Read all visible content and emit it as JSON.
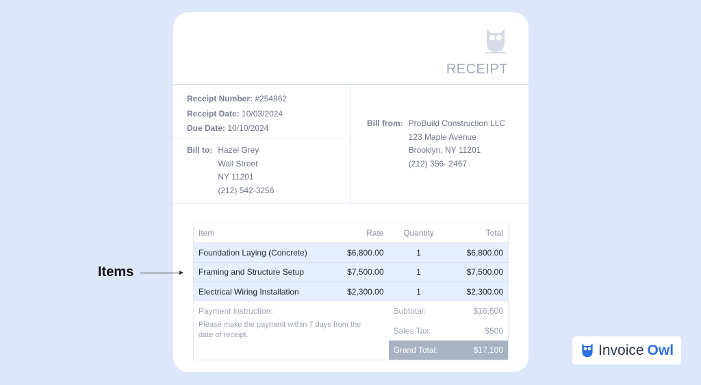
{
  "receipt": {
    "title": "RECEIPT",
    "receipt_number_label": "Receipt Number:",
    "receipt_number": "#254862",
    "receipt_date_label": "Receipt Date:",
    "receipt_date": "10/03/2024",
    "due_date_label": "Due Date:",
    "due_date": "10/10/2024",
    "bill_to": {
      "label": "Bill to:",
      "lines": [
        "Hazel Grey",
        "Wall Street",
        "NY 11201",
        "(212) 542-3256"
      ]
    },
    "bill_from": {
      "label": "Bill from:",
      "lines": [
        "ProBuild Construction LLC",
        "123 Maple Avenue",
        "Brooklyn, NY 11201",
        "(212) 356- 2467"
      ]
    },
    "table": {
      "headers": [
        "Item",
        "Rate",
        "Quantity",
        "Total"
      ],
      "rows": [
        [
          "Foundation Laying (Concrete)",
          "$6,800.00",
          "1",
          "$6,800.00"
        ],
        [
          "Framing and Structure Setup",
          "$7,500.00",
          "1",
          "$7,500.00"
        ],
        [
          "Electrical Wiring Installation",
          "$2,300.00",
          "1",
          "$2,300.00"
        ]
      ]
    },
    "payment_label": "Payment instruction:",
    "payment_text": "Please make the payment within 7 days from the date of receipt.",
    "subtotal_label": "Subtotal:",
    "subtotal": "$16,600",
    "tax_label": "Sales Tax:",
    "tax": "$500",
    "grand_label": "Grand Total:",
    "grand": "$17,100"
  },
  "annotation": {
    "label": "Items"
  },
  "brand": {
    "name_a": "Invoice",
    "name_b": "Owl",
    "color": "#2f6fdc"
  }
}
